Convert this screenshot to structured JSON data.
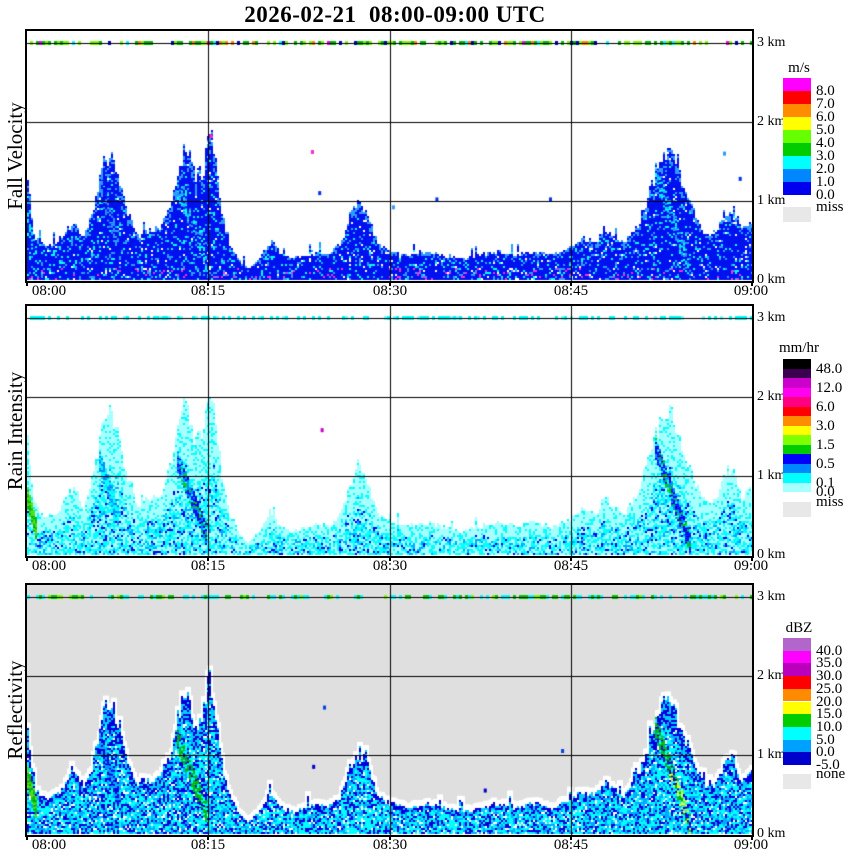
{
  "chart_data": {
    "type": "heatmap",
    "title": "2026-02-21  08:00-09:00 UTC",
    "x": {
      "labels": [
        "08:00",
        "08:15",
        "08:30",
        "08:45",
        "09:00"
      ],
      "range_min": [
        0,
        60
      ],
      "gridlines_min": [
        15,
        30,
        45
      ]
    },
    "y": {
      "labels": [
        "3 km",
        "2 km",
        "1 km",
        "0 km"
      ],
      "range_km": [
        0,
        3
      ],
      "gridlines_km": [
        1,
        2,
        3
      ]
    },
    "panels": [
      {
        "name": "Fall Velocity",
        "style": "velocity",
        "background": "#FFFFFF",
        "halo": false,
        "top_scale": 1.0,
        "min_top_km": 0.05,
        "dash_density": 0.6,
        "dash_colors": [
          [
            "#7CFC00",
            0.36
          ],
          [
            "#00BB00",
            0.34
          ],
          [
            "#0000CC",
            0.09
          ],
          [
            "#00FFFF",
            0.11
          ],
          [
            "#FF00FF",
            0.04
          ],
          [
            "#FF8C00",
            0.06
          ]
        ],
        "legend": {
          "title": "m/s",
          "segments": [
            {
              "c": "#FF00FF",
              "l": "8.0"
            },
            {
              "c": "#FF0000",
              "l": "7.0"
            },
            {
              "c": "#FF8C00",
              "l": "6.0"
            },
            {
              "c": "#FFFF00",
              "l": "5.0"
            },
            {
              "c": "#66FF00",
              "l": "4.0"
            },
            {
              "c": "#00CC00",
              "l": "3.0"
            },
            {
              "c": "#00FFFF",
              "l": "2.0"
            },
            {
              "c": "#0087FF",
              "l": "1.0"
            },
            {
              "c": "#0000EE",
              "l": "0.0"
            }
          ],
          "miss": {
            "c": "#E8E8E8",
            "l": "miss"
          }
        }
      },
      {
        "name": "Rain Intensity",
        "style": "rain",
        "background": "#FFFFFF",
        "halo": false,
        "top_scale": 1.13,
        "min_top_km": 0.12,
        "dash_density": 0.5,
        "dash_colors": [
          [
            "#00FFFF",
            0.8
          ],
          [
            "#7CFFFF",
            0.2
          ]
        ],
        "legend": {
          "title": "mm/hr",
          "segments": [
            {
              "c": "#000000",
              "l": "48.0"
            },
            {
              "c": "#3C0050",
              "l": ""
            },
            {
              "c": "#CC00CC",
              "l": "12.0"
            },
            {
              "c": "#FF00F0",
              "l": ""
            },
            {
              "c": "#FF0080",
              "l": "6.0"
            },
            {
              "c": "#FF0000",
              "l": ""
            },
            {
              "c": "#FF8C00",
              "l": "3.0"
            },
            {
              "c": "#FFFF00",
              "l": ""
            },
            {
              "c": "#80FF00",
              "l": "1.5"
            },
            {
              "c": "#00CC00",
              "l": ""
            },
            {
              "c": "#0000FF",
              "l": "0.5"
            },
            {
              "c": "#0087FF",
              "l": ""
            },
            {
              "c": "#00FFFF",
              "l": "0.1"
            },
            {
              "c": "#A8FFFF",
              "l": "0.0"
            }
          ],
          "miss": {
            "c": "#E8E8E8",
            "l": "miss"
          }
        }
      },
      {
        "name": "Reflectivity",
        "style": "reflect",
        "background": "#DFDFDF",
        "halo": true,
        "top_scale": 1.05,
        "min_top_km": 0.08,
        "dash_density": 0.55,
        "dash_colors": [
          [
            "#00CC00",
            0.45
          ],
          [
            "#00FFFF",
            0.4
          ],
          [
            "#7CFC00",
            0.15
          ]
        ],
        "legend": {
          "title": "dBZ",
          "segments": [
            {
              "c": "#B266CC",
              "l": "40.0"
            },
            {
              "c": "#FF00FF",
              "l": "35.0"
            },
            {
              "c": "#BB00BB",
              "l": "30.0"
            },
            {
              "c": "#FF0000",
              "l": "25.0"
            },
            {
              "c": "#FF8C00",
              "l": "20.0"
            },
            {
              "c": "#FFFF00",
              "l": "15.0"
            },
            {
              "c": "#00CC00",
              "l": "10.0"
            },
            {
              "c": "#00FFFF",
              "l": "5.0"
            },
            {
              "c": "#00A0FF",
              "l": "0.0"
            },
            {
              "c": "#0000CC",
              "l": "-5.0"
            }
          ],
          "miss": {
            "c": "#E8E8E8",
            "l": "none"
          }
        }
      }
    ],
    "echo_top_profile_km": [
      [
        0,
        1.35
      ],
      [
        0.6,
        0.55
      ],
      [
        1.5,
        0.4
      ],
      [
        2.5,
        0.45
      ],
      [
        3.2,
        0.6
      ],
      [
        4,
        0.75
      ],
      [
        4.7,
        0.5
      ],
      [
        5.5,
        0.85
      ],
      [
        6.3,
        1.45
      ],
      [
        7,
        1.55
      ],
      [
        7.7,
        1.25
      ],
      [
        8.4,
        0.8
      ],
      [
        9.2,
        0.55
      ],
      [
        10,
        0.6
      ],
      [
        11,
        0.65
      ],
      [
        12,
        1.0
      ],
      [
        12.7,
        1.5
      ],
      [
        13.3,
        1.65
      ],
      [
        13.9,
        1.25
      ],
      [
        14.6,
        1.35
      ],
      [
        15.2,
        1.85
      ],
      [
        15.7,
        1.4
      ],
      [
        16.2,
        0.8
      ],
      [
        16.8,
        0.45
      ],
      [
        17.5,
        0.25
      ],
      [
        18.3,
        0.12
      ],
      [
        19.2,
        0.25
      ],
      [
        20.2,
        0.5
      ],
      [
        21,
        0.3
      ],
      [
        22,
        0.25
      ],
      [
        23,
        0.3
      ],
      [
        24,
        0.35
      ],
      [
        25,
        0.3
      ],
      [
        26,
        0.45
      ],
      [
        26.8,
        0.8
      ],
      [
        27.5,
        0.95
      ],
      [
        28.2,
        0.8
      ],
      [
        29,
        0.45
      ],
      [
        30,
        0.35
      ],
      [
        31.5,
        0.3
      ],
      [
        33,
        0.35
      ],
      [
        34.5,
        0.3
      ],
      [
        36,
        0.25
      ],
      [
        37.5,
        0.3
      ],
      [
        39,
        0.35
      ],
      [
        40.5,
        0.3
      ],
      [
        42,
        0.35
      ],
      [
        43.5,
        0.3
      ],
      [
        45,
        0.4
      ],
      [
        46,
        0.5
      ],
      [
        47,
        0.45
      ],
      [
        47.9,
        0.62
      ],
      [
        48.7,
        0.5
      ],
      [
        49.5,
        0.45
      ],
      [
        50.3,
        0.6
      ],
      [
        51,
        0.85
      ],
      [
        51.8,
        1.2
      ],
      [
        52.5,
        1.5
      ],
      [
        53.2,
        1.62
      ],
      [
        54,
        1.3
      ],
      [
        54.8,
        1.0
      ],
      [
        55.5,
        0.75
      ],
      [
        56.2,
        0.55
      ],
      [
        57,
        0.6
      ],
      [
        57.8,
        0.85
      ],
      [
        58.5,
        0.9
      ],
      [
        59.2,
        0.6
      ],
      [
        60,
        0.75
      ]
    ],
    "cores": [
      {
        "t0": 0.0,
        "t1": 0.8,
        "h0": 0.75,
        "h1": 0.3,
        "kind": "edge"
      },
      {
        "t0": 5.9,
        "t1": 7.6,
        "h0": 1.25,
        "h1": 0.45,
        "kind": "weak"
      },
      {
        "t0": 12.4,
        "t1": 14.9,
        "h0": 1.2,
        "h1": 0.25,
        "kind": "strong"
      },
      {
        "t0": 51.9,
        "t1": 54.9,
        "h0": 1.4,
        "h1": 0.12,
        "kind": "strong",
        "yellow": true
      }
    ],
    "specks": [
      [
        [
          15.1,
          1.82,
          "#FF2BD0"
        ],
        [
          23.5,
          1.62,
          "#FF2BD0"
        ],
        [
          24.1,
          1.1,
          "#0033EE"
        ],
        [
          30.2,
          0.92,
          "#2E9AFF"
        ],
        [
          33.8,
          1.02,
          "#0033EE"
        ],
        [
          43.2,
          1.02,
          "#0033EE"
        ],
        [
          57.6,
          1.6,
          "#2E9AFF"
        ],
        [
          58.9,
          1.28,
          "#0033EE"
        ]
      ],
      [
        [
          24.3,
          1.58,
          "#CC00CC"
        ]
      ],
      [
        [
          24.5,
          1.6,
          "#0044DD"
        ],
        [
          23.6,
          0.85,
          "#0000CC"
        ],
        [
          37.8,
          0.55,
          "#0000CC"
        ],
        [
          44.2,
          1.05,
          "#0044DD"
        ]
      ]
    ]
  }
}
